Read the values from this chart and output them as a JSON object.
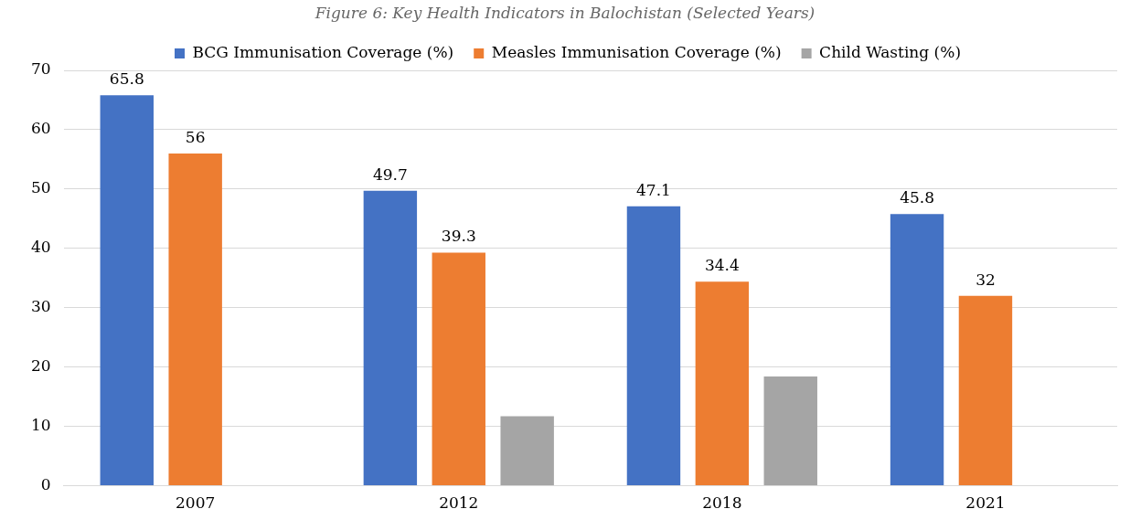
{
  "chart_data": {
    "type": "bar",
    "title": "Figure 6: Key Health Indicators in Balochistan (Selected Years)",
    "categories": [
      "2007",
      "2012",
      "2018",
      "2021"
    ],
    "series": [
      {
        "name": "BCG Immunisation Coverage (%)",
        "color": "#4472c4",
        "values": [
          65.8,
          49.7,
          47.1,
          45.8
        ],
        "value_labels": [
          "65.8",
          "49.7",
          "47.1",
          "45.8"
        ]
      },
      {
        "name": "Measles Immunisation Coverage (%)",
        "color": "#ed7d31",
        "values": [
          56,
          39.3,
          34.4,
          32
        ],
        "value_labels": [
          "56",
          "39.3",
          "34.4",
          "32"
        ]
      },
      {
        "name": "Child Wasting (%)",
        "color": "#a5a5a5",
        "values": [
          null,
          11.7,
          18.4,
          null
        ]
      }
    ],
    "ylim": [
      0,
      70
    ],
    "yticks": [
      0,
      10,
      20,
      30,
      40,
      50,
      60,
      70
    ],
    "grid": "y",
    "legend": "top"
  }
}
